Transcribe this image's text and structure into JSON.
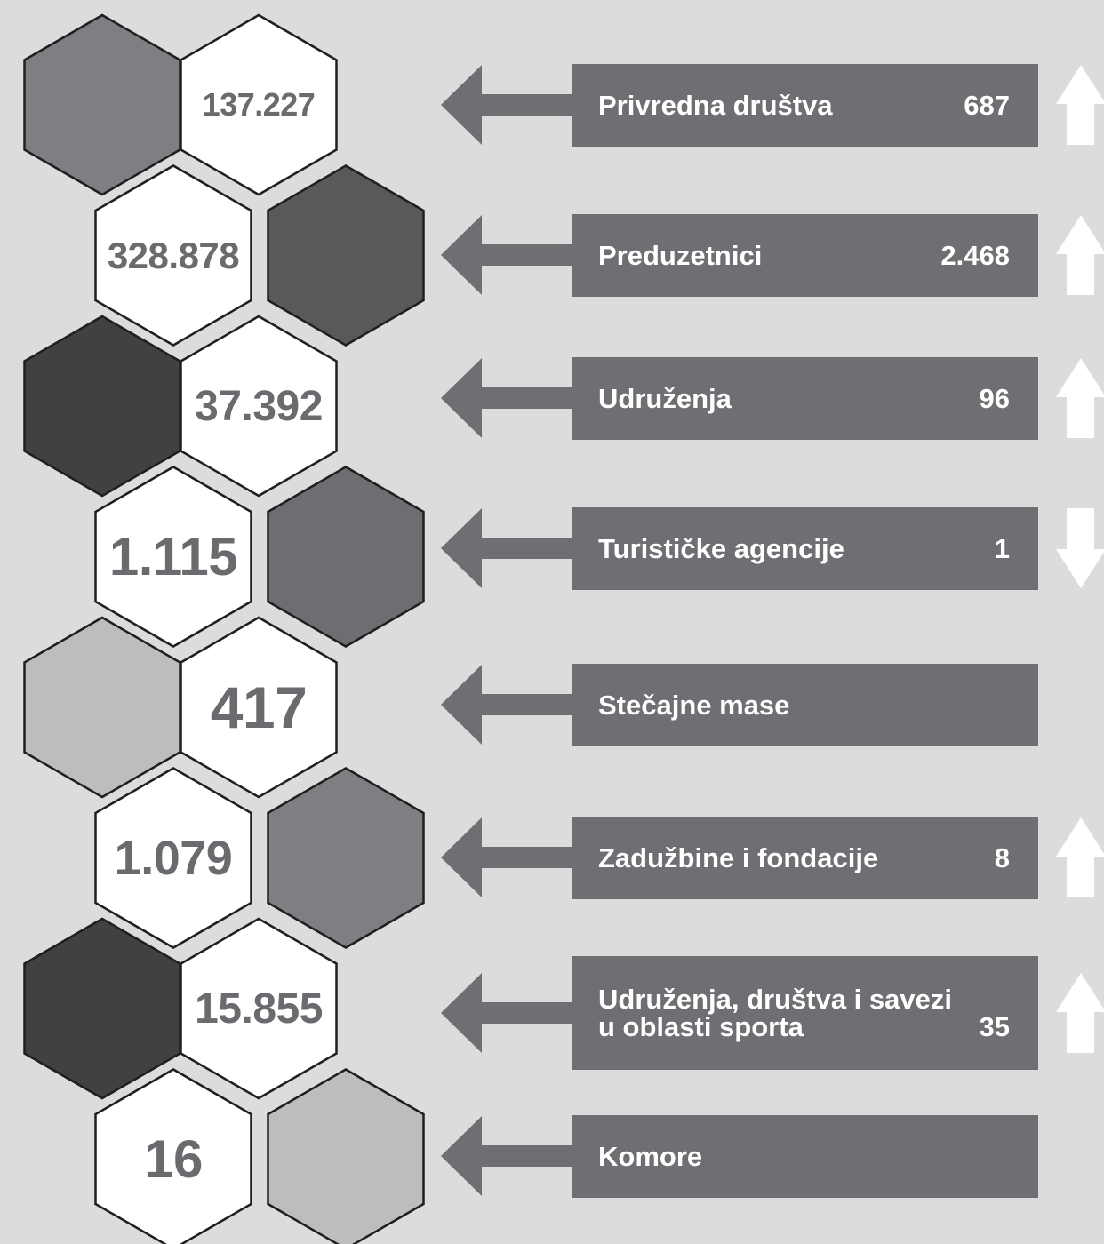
{
  "rows": [
    {
      "hex_value": "137.227",
      "label": "Privredna društva",
      "count": "687",
      "trend": "up",
      "shade_color": "#7e7f82"
    },
    {
      "hex_value": "328.878",
      "label": "Preduzetnici",
      "count": "2.468",
      "trend": "up",
      "shade_color": "#58595b"
    },
    {
      "hex_value": "37.392",
      "label": "Udruženja",
      "count": "96",
      "trend": "up",
      "shade_color": "#414142"
    },
    {
      "hex_value": "1.115",
      "label": "Turističke agencije",
      "count": "1",
      "trend": "down",
      "shade_color": "#6d6e71"
    },
    {
      "hex_value": "417",
      "label": "Stečajne mase",
      "count": "",
      "trend": "",
      "shade_color": "#bcbdbf"
    },
    {
      "hex_value": "1.079",
      "label": "Zadužbine i fondacije",
      "count": "8",
      "trend": "up",
      "shade_color": "#7e7f82"
    },
    {
      "hex_value": "15.855",
      "label": "Udruženja, društva i savezi\nu oblasti sporta",
      "count": "35",
      "trend": "up",
      "shade_color": "#414142"
    },
    {
      "hex_value": "16",
      "label": "Komore",
      "count": "",
      "trend": "",
      "shade_color": "#bcbdbf"
    }
  ],
  "colors": {
    "background": "#dcdcdd",
    "box": "#6e6f72",
    "arrow": "#6e6f72",
    "hex_white": "#ffffff",
    "hex_text": "#6a6b6e",
    "trend_arrow": "#ffffff"
  }
}
